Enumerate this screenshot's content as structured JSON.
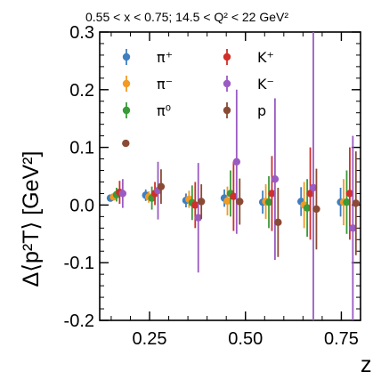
{
  "chart_data": {
    "type": "scatter",
    "title": "0.55 < x < 0.75;  14.5 < Q² < 22 GeV²",
    "xlabel": "z",
    "ylabel": "Δ⟨p²T⟩ [GeV²]",
    "xlim": [
      0.12,
      0.8
    ],
    "ylim": [
      -0.2,
      0.3
    ],
    "x_ticks": [
      0.25,
      0.5,
      0.75
    ],
    "x_tick_labels": [
      "0.25",
      "0.50",
      "0.75"
    ],
    "y_ticks": [
      -0.2,
      -0.1,
      0.0,
      0.1,
      0.2,
      0.3
    ],
    "y_tick_labels": [
      "-0.2",
      "-0.1",
      "0.0",
      "0.1",
      "0.2",
      "0.3"
    ],
    "grid": false,
    "legend_position": "top",
    "series": [
      {
        "name": "π⁺",
        "color": "#3f7fc0",
        "points": [
          {
            "x": 0.148,
            "y": 0.012,
            "err": 0.006
          },
          {
            "x": 0.24,
            "y": 0.017,
            "err": 0.01
          },
          {
            "x": 0.345,
            "y": 0.008,
            "err": 0.012
          },
          {
            "x": 0.445,
            "y": 0.012,
            "err": 0.015
          },
          {
            "x": 0.545,
            "y": 0.005,
            "err": 0.02
          },
          {
            "x": 0.645,
            "y": 0.006,
            "err": 0.025
          },
          {
            "x": 0.748,
            "y": 0.005,
            "err": 0.025
          }
        ]
      },
      {
        "name": "π⁻",
        "color": "#f39a24",
        "points": [
          {
            "x": 0.156,
            "y": 0.014,
            "err": 0.006
          },
          {
            "x": 0.248,
            "y": 0.014,
            "err": 0.01
          },
          {
            "x": 0.353,
            "y": 0.01,
            "err": 0.015
          },
          {
            "x": 0.453,
            "y": 0.007,
            "err": 0.025
          },
          {
            "x": 0.553,
            "y": 0.006,
            "err": 0.03
          },
          {
            "x": 0.653,
            "y": 0.0,
            "err": 0.04
          },
          {
            "x": 0.756,
            "y": 0.005,
            "err": 0.04
          }
        ]
      },
      {
        "name": "π⁰",
        "color": "#3a9a3a",
        "points": [
          {
            "x": 0.164,
            "y": 0.018,
            "err": 0.012
          },
          {
            "x": 0.256,
            "y": 0.012,
            "err": 0.02
          },
          {
            "x": 0.361,
            "y": 0.004,
            "err": 0.03
          },
          {
            "x": 0.461,
            "y": 0.02,
            "err": 0.04
          },
          {
            "x": 0.561,
            "y": 0.005,
            "err": 0.045
          },
          {
            "x": 0.661,
            "y": -0.005,
            "err": 0.05
          },
          {
            "x": 0.764,
            "y": 0.005,
            "err": 0.055
          }
        ]
      },
      {
        "name": "K⁺",
        "color": "#d02f2a",
        "points": [
          {
            "x": 0.172,
            "y": 0.022,
            "err": 0.02
          },
          {
            "x": 0.264,
            "y": 0.02,
            "err": 0.02
          },
          {
            "x": 0.369,
            "y": 0.0,
            "err": 0.04
          },
          {
            "x": 0.469,
            "y": 0.015,
            "err": 0.06
          },
          {
            "x": 0.569,
            "y": 0.02,
            "err": 0.065
          },
          {
            "x": 0.669,
            "y": 0.02,
            "err": 0.08
          },
          {
            "x": 0.772,
            "y": 0.02,
            "err": 0.08
          }
        ]
      },
      {
        "name": "K⁻",
        "color": "#9a5bc2",
        "points": [
          {
            "x": 0.18,
            "y": 0.02,
            "err": 0.025
          },
          {
            "x": 0.272,
            "y": 0.025,
            "err": 0.05
          },
          {
            "x": 0.377,
            "y": -0.022,
            "err": 0.095
          },
          {
            "x": 0.477,
            "y": 0.075,
            "err": 0.125
          },
          {
            "x": 0.577,
            "y": 0.045,
            "err": 0.14
          },
          {
            "x": 0.677,
            "y": 0.03,
            "err": 0.32
          },
          {
            "x": 0.78,
            "y": -0.04,
            "err": 0.16
          }
        ]
      },
      {
        "name": "p",
        "color": "#8a4b35",
        "points": [
          {
            "x": 0.188,
            "y": 0.107,
            "err": 0.005
          },
          {
            "x": 0.28,
            "y": 0.032,
            "err": 0.03
          },
          {
            "x": 0.385,
            "y": 0.006,
            "err": 0.03
          },
          {
            "x": 0.485,
            "y": 0.006,
            "err": 0.04
          },
          {
            "x": 0.585,
            "y": -0.03,
            "err": 0.06
          },
          {
            "x": 0.685,
            "y": -0.007,
            "err": 0.07
          },
          {
            "x": 0.788,
            "y": 0.003,
            "err": 0.09
          }
        ]
      }
    ]
  }
}
